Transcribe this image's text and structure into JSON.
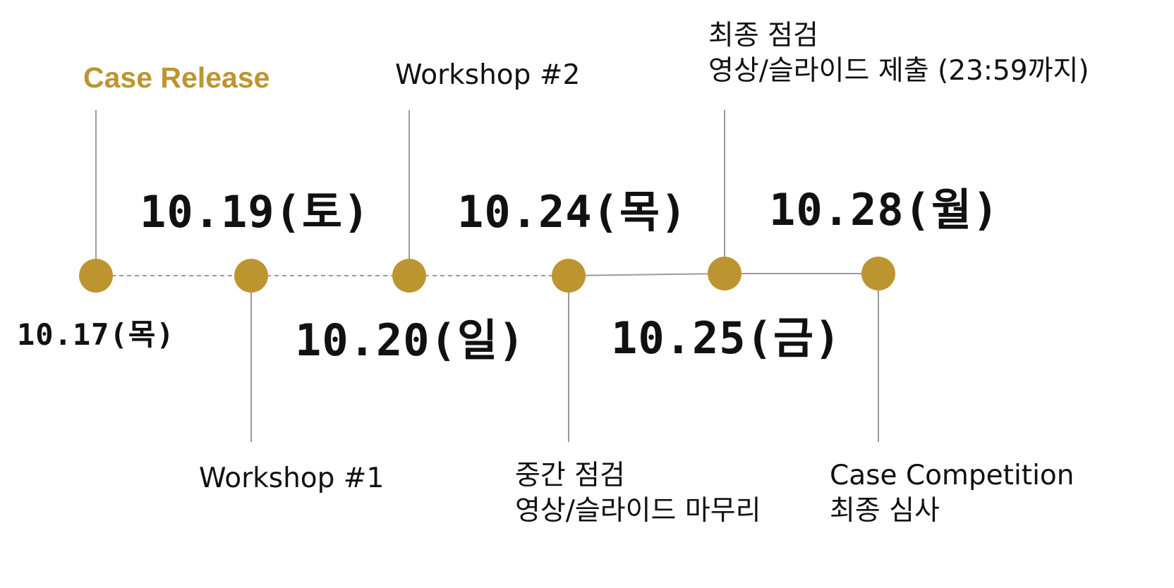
{
  "colors": {
    "accent": "#bd9530",
    "connector": "#9a9a9a",
    "text": "#111111"
  },
  "milestones": [
    {
      "date": "10.17(목)",
      "event_lines": [
        "Case Release"
      ],
      "event_side": "top",
      "date_side": "bottom",
      "event_accent": true
    },
    {
      "date": "10.19(토)",
      "event_lines": [
        "Workshop #1"
      ],
      "event_side": "bottom",
      "date_side": "top",
      "event_accent": false
    },
    {
      "date": "10.20(일)",
      "event_lines": [
        "Workshop #2"
      ],
      "event_side": "top",
      "date_side": "bottom",
      "event_accent": false
    },
    {
      "date": "10.24(목)",
      "event_lines": [
        "중간 점검",
        "영상/슬라이드 마무리"
      ],
      "event_side": "bottom",
      "date_side": "top",
      "event_accent": false
    },
    {
      "date": "10.25(금)",
      "event_lines": [
        "최종 점검",
        "영상/슬라이드 제출 (23:59까지)"
      ],
      "event_side": "top",
      "date_side": "bottom",
      "event_accent": false
    },
    {
      "date": "10.28(월)",
      "event_lines": [
        "Case Competition",
        "최종 심사"
      ],
      "event_side": "bottom",
      "date_side": "top",
      "event_accent": false
    }
  ],
  "segments": [
    {
      "from": 0,
      "to": 1,
      "style": "dashed"
    },
    {
      "from": 1,
      "to": 2,
      "style": "dashed"
    },
    {
      "from": 2,
      "to": 3,
      "style": "dashed"
    },
    {
      "from": 3,
      "to": 4,
      "style": "solid"
    },
    {
      "from": 4,
      "to": 5,
      "style": "solid"
    }
  ]
}
